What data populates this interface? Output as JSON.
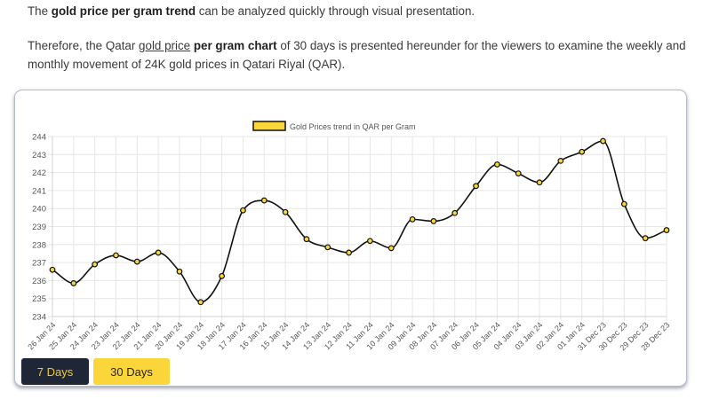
{
  "intro": {
    "p1_pre": "The ",
    "p1_bold": "gold price per gram trend",
    "p1_post": " can be analyzed quickly through visual presentation.",
    "p2_pre": "Therefore, the Qatar ",
    "p2_link": "gold price",
    "p2_bold": "per gram chart",
    "p2_post": " of 30 days is presented hereunder for the viewers to examine the weekly and monthly movement of 24K gold prices in Qatari Riyal (QAR)."
  },
  "buttons": {
    "days7": "7 Days",
    "days30": "30 Days"
  },
  "colors": {
    "line": "#111111",
    "marker": "#fbd63a",
    "legend_fill": "#fbd63a",
    "grid": "#e6e6e6"
  },
  "chart_data": {
    "type": "line",
    "legend": "Gold Prices trend in QAR per Gram",
    "legend_position": "top-center",
    "grid": true,
    "ylim": [
      234,
      244
    ],
    "yticks": [
      234,
      235,
      236,
      237,
      238,
      239,
      240,
      241,
      242,
      243,
      244
    ],
    "x": [
      "26 Jan 24",
      "25 Jan 24",
      "24 Jan 24",
      "23 Jan 24",
      "22 Jan 24",
      "21 Jan 24",
      "20 Jan 24",
      "19 Jan 24",
      "18 Jan 24",
      "17 Jan 24",
      "16 Jan 24",
      "15 Jan 24",
      "14 Jan 24",
      "13 Jan 24",
      "12 Jan 24",
      "11 Jan 24",
      "10 Jan 24",
      "09 Jan 24",
      "08 Jan 24",
      "07 Jan 24",
      "06 Jan 24",
      "05 Jan 24",
      "04 Jan 24",
      "03 Jan 24",
      "02 Jan 24",
      "01 Jan 24",
      "31 Dec 23",
      "30 Dec 23",
      "29 Dec 23",
      "28 Dec 23"
    ],
    "series": [
      {
        "name": "Gold Prices trend in QAR per Gram",
        "values": [
          236.6,
          235.85,
          236.9,
          237.4,
          237.05,
          237.55,
          236.5,
          234.8,
          236.25,
          239.9,
          240.45,
          239.8,
          238.3,
          237.85,
          237.55,
          238.2,
          237.8,
          239.4,
          239.3,
          239.75,
          241.25,
          242.45,
          241.95,
          241.45,
          242.65,
          243.15,
          243.75,
          240.25,
          238.35,
          238.8
        ]
      }
    ]
  }
}
